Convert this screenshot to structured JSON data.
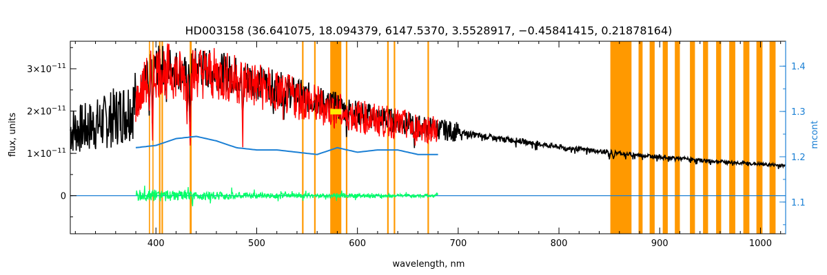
{
  "chart_data": {
    "type": "line",
    "title": "HD003158    (36.641075, 18.094379, 6147.5370, 3.5528917, −0.45841415, 0.21878164)",
    "xlabel": "wavelength, nm",
    "ylabel": "flux, units",
    "y2label": "mcont",
    "xlim": [
      315,
      1025
    ],
    "ylim": [
      -9e-12,
      3.65e-11
    ],
    "y2lim": [
      1.03,
      1.455
    ],
    "grid": false,
    "x_ticks": [
      400,
      500,
      600,
      700,
      800,
      900,
      1000
    ],
    "y_ticks": [
      {
        "value": 3e-11,
        "mant": "3×10",
        "exp": "−11"
      },
      {
        "value": 2e-11,
        "mant": "2×10",
        "exp": "−11"
      },
      {
        "value": 1e-11,
        "mant": "1×10",
        "exp": "−11"
      },
      {
        "value": 0,
        "mant": "0",
        "exp": ""
      }
    ],
    "y2_ticks": [
      1.1,
      1.2,
      1.3,
      1.4
    ],
    "colors": {
      "observed": "#000000",
      "model": "#ff0000",
      "mask": "#ff9900",
      "continuum": "#1a7fd4",
      "residual": "#00ff66",
      "highlight": "#ffee00"
    },
    "series": [
      {
        "key": "observed",
        "x": [
          315,
          330,
          350,
          370,
          380,
          390,
          400,
          410,
          420,
          430,
          440,
          450,
          460,
          470,
          480,
          490,
          500,
          520,
          540,
          560,
          580,
          600,
          620,
          640,
          660,
          680,
          700,
          720,
          740,
          760,
          780,
          800,
          820,
          840,
          850,
          870,
          890,
          910,
          930,
          950,
          970,
          990,
          1010,
          1025
        ],
        "y": [
          1.55e-11,
          1.6e-11,
          1.75e-11,
          2e-11,
          2.2e-11,
          2.75e-11,
          3.05e-11,
          3.1e-11,
          3e-11,
          2.85e-11,
          3.05e-11,
          3e-11,
          2.95e-11,
          2.9e-11,
          2.85e-11,
          2.8e-11,
          2.7e-11,
          2.55e-11,
          2.4e-11,
          2.25e-11,
          2.1e-11,
          1.95e-11,
          1.85e-11,
          1.75e-11,
          1.65e-11,
          1.58e-11,
          1.5e-11,
          1.42e-11,
          1.35e-11,
          1.3e-11,
          1.22e-11,
          1.15e-11,
          1.1e-11,
          1.05e-11,
          1.03e-11,
          9.8e-12,
          9.4e-12,
          9e-12,
          8.6e-12,
          8.2e-12,
          7.9e-12,
          7.6e-12,
          7.3e-12,
          7.1e-12
        ]
      },
      {
        "key": "model",
        "x": [
          380,
          390,
          400,
          410,
          420,
          430,
          440,
          450,
          460,
          470,
          480,
          490,
          500,
          520,
          540,
          560,
          580,
          600,
          620,
          640,
          660,
          680
        ],
        "y": [
          2.15e-11,
          2.7e-11,
          2.95e-11,
          3e-11,
          2.9e-11,
          2.75e-11,
          2.95e-11,
          2.9e-11,
          2.85e-11,
          2.8e-11,
          2.75e-11,
          2.7e-11,
          2.6e-11,
          2.45e-11,
          2.3e-11,
          2.15e-11,
          2e-11,
          1.88e-11,
          1.78e-11,
          1.7e-11,
          1.62e-11,
          1.56e-11
        ]
      },
      {
        "key": "continuum",
        "axis": "right",
        "x": [
          380,
          400,
          420,
          440,
          460,
          480,
          500,
          520,
          540,
          560,
          580,
          600,
          620,
          640,
          660,
          680
        ],
        "y": [
          1.22,
          1.225,
          1.24,
          1.245,
          1.235,
          1.22,
          1.215,
          1.215,
          1.21,
          1.205,
          1.22,
          1.21,
          1.215,
          1.215,
          1.205,
          1.205
        ]
      },
      {
        "key": "residual",
        "x": [
          380,
          400,
          420,
          440,
          460,
          480,
          500,
          520,
          540,
          560,
          580,
          600,
          620,
          640,
          660,
          680
        ],
        "y": [
          1.4e-12,
          1.5e-12,
          1.1e-12,
          1e-12,
          1e-12,
          8e-13,
          7e-13,
          6e-13,
          6e-13,
          5e-13,
          6e-13,
          5e-13,
          5e-13,
          4e-13,
          4e-13,
          4e-13
        ]
      }
    ],
    "absorption_lines": [
      {
        "x": 393.4,
        "depth": 1.4e-11
      },
      {
        "x": 396.8,
        "depth": 1.2e-11
      },
      {
        "x": 410.2,
        "depth": 8e-12
      },
      {
        "x": 430.8,
        "depth": 7e-12
      },
      {
        "x": 434.0,
        "depth": 1.2e-11
      },
      {
        "x": 486.1,
        "depth": 1.4e-11
      },
      {
        "x": 516.8,
        "depth": 6e-12
      },
      {
        "x": 527.0,
        "depth": 5e-12
      },
      {
        "x": 589.0,
        "depth": 5e-12
      },
      {
        "x": 656.3,
        "depth": 1.05e-11
      },
      {
        "x": 850.0,
        "depth": 4e-12
      },
      {
        "x": 854.2,
        "depth": 4e-12
      },
      {
        "x": 866.2,
        "depth": 3e-12
      }
    ],
    "mask_regions": [
      [
        393.0,
        394.0
      ],
      [
        396.5,
        397.5
      ],
      [
        403.0,
        404.5
      ],
      [
        405.5,
        407.0
      ],
      [
        433.5,
        435.5
      ],
      [
        545.0,
        546.5
      ],
      [
        557.0,
        558.5
      ],
      [
        573.0,
        584.0
      ],
      [
        588.5,
        590.0
      ],
      [
        629.5,
        631.0
      ],
      [
        636.0,
        637.5
      ],
      [
        669.5,
        671.0
      ],
      [
        851.0,
        872.0
      ],
      [
        879.0,
        883.0
      ],
      [
        890.0,
        895.0
      ],
      [
        903.0,
        908.0
      ],
      [
        915.0,
        920.0
      ],
      [
        930.0,
        935.0
      ],
      [
        943.0,
        948.0
      ],
      [
        956.0,
        961.0
      ],
      [
        969.0,
        975.0
      ],
      [
        983.0,
        989.0
      ],
      [
        996.0,
        1002.0
      ],
      [
        1009.0,
        1015.0
      ]
    ]
  }
}
